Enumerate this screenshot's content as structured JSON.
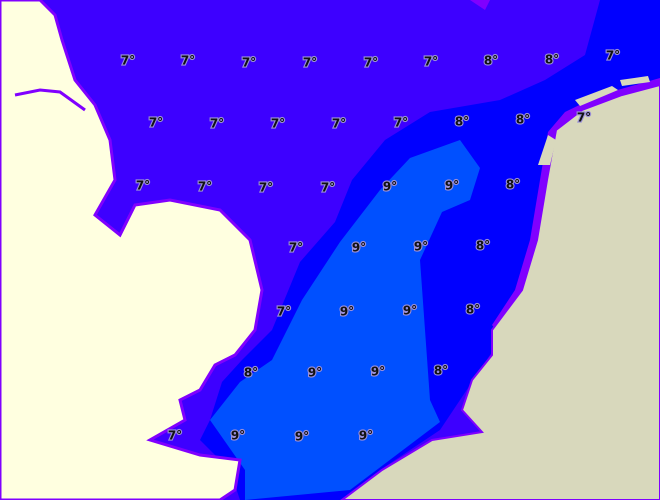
{
  "map": {
    "unit": "°",
    "colors": {
      "temp_7": "#3d00ff",
      "temp_8": "#0000ff",
      "temp_9": "#0050ff",
      "coastal_fringe": "#8000ff",
      "land_left": "#ffffe0",
      "land_right": "#d8d8bc"
    },
    "labels": [
      "7",
      "7",
      "7",
      "7",
      "7",
      "7",
      "8",
      "8",
      "7",
      "7",
      "7",
      "7",
      "7",
      "7",
      "8",
      "8",
      "7",
      "7",
      "7",
      "7",
      "7",
      "9",
      "9",
      "8",
      "7",
      "9",
      "9",
      "8",
      "7",
      "9",
      "9",
      "8",
      "8",
      "9",
      "9",
      "8",
      "7",
      "9",
      "9",
      "9"
    ]
  }
}
